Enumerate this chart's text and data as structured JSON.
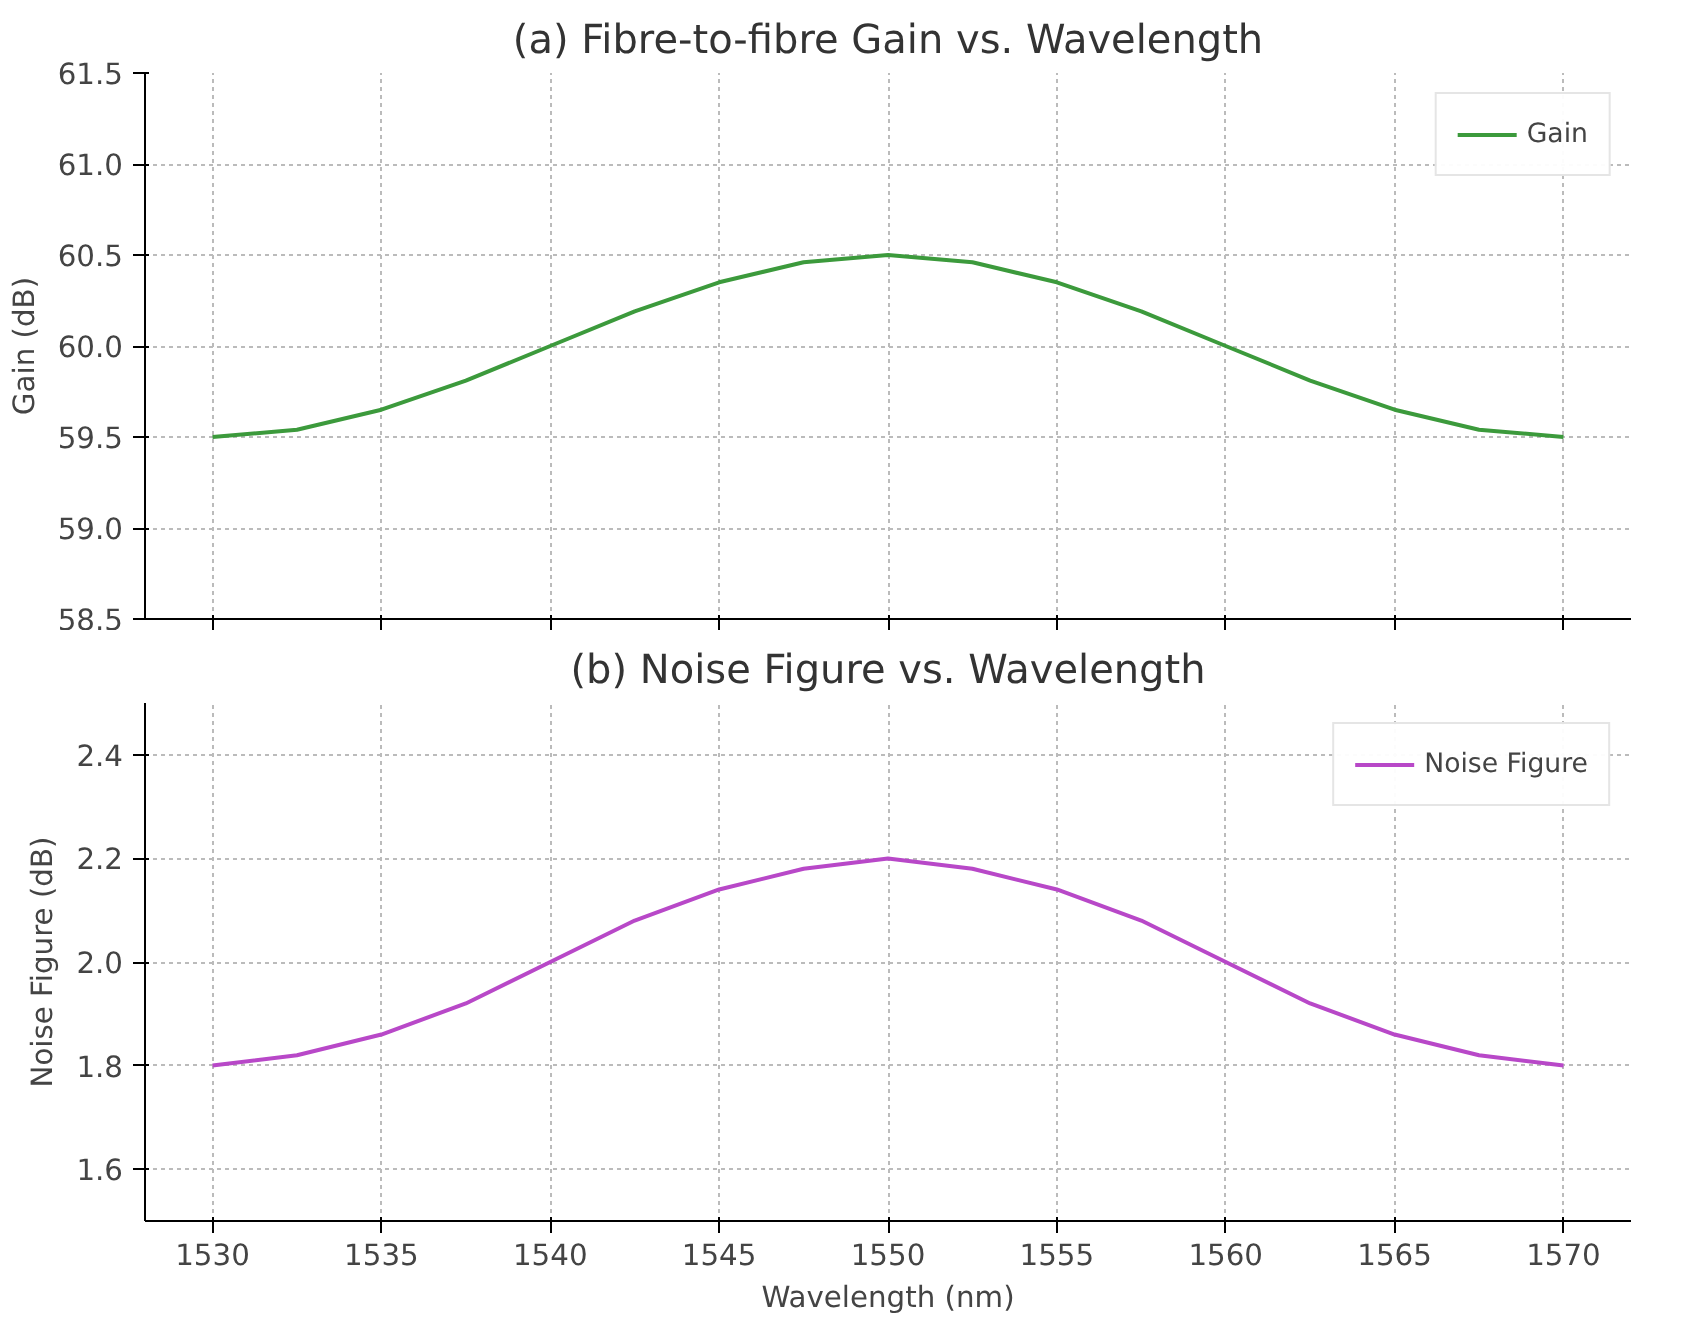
{
  "chart_data": [
    {
      "type": "line",
      "title": "(a) Fibre-to-fibre Gain vs. Wavelength",
      "ylabel": "Gain (dB)",
      "x": [
        1530,
        1532.5,
        1535,
        1537.5,
        1540,
        1542.5,
        1545,
        1547.5,
        1550,
        1552.5,
        1555,
        1557.5,
        1560,
        1562.5,
        1565,
        1567.5,
        1570
      ],
      "series": [
        {
          "name": "Gain",
          "color": "#3c9a3c",
          "values": [
            59.5,
            59.54,
            59.65,
            59.81,
            60.0,
            60.19,
            60.35,
            60.46,
            60.5,
            60.46,
            60.35,
            60.19,
            60.0,
            59.81,
            59.65,
            59.54,
            59.5
          ]
        }
      ],
      "xlim": [
        1528,
        1572
      ],
      "xticks": [
        1530,
        1535,
        1540,
        1545,
        1550,
        1555,
        1560,
        1565,
        1570
      ],
      "ylim": [
        58.5,
        61.5
      ],
      "yticks": [
        58.5,
        {
          "value": 59,
          "label": "59.0"
        },
        59.5,
        {
          "value": 60,
          "label": "60.0"
        },
        60.5,
        {
          "value": 61,
          "label": "61.0"
        },
        61.5
      ],
      "tick_labels": "y",
      "grid": true,
      "legend": "top right"
    },
    {
      "type": "line",
      "title": "(b) Noise Figure vs. Wavelength",
      "xlabel": "Wavelength (nm)",
      "ylabel": "Noise Figure (dB)",
      "x": [
        1530,
        1532.5,
        1535,
        1537.5,
        1540,
        1542.5,
        1545,
        1547.5,
        1550,
        1552.5,
        1555,
        1557.5,
        1560,
        1562.5,
        1565,
        1567.5,
        1570
      ],
      "series": [
        {
          "name": "Noise Figure",
          "color": "#b848c8",
          "values": [
            1.8,
            1.82,
            1.86,
            1.92,
            2.0,
            2.08,
            2.14,
            2.18,
            2.2,
            2.18,
            2.14,
            2.08,
            2.0,
            1.92,
            1.86,
            1.82,
            1.8
          ]
        }
      ],
      "xlim": [
        1528,
        1572
      ],
      "xticks": [
        1530,
        1535,
        1540,
        1545,
        1550,
        1555,
        1560,
        1565,
        1570
      ],
      "ylim": [
        1.5,
        2.5
      ],
      "yticks": [
        1.6,
        1.8,
        {
          "value": 2,
          "label": "2.0"
        },
        2.2,
        2.4
      ],
      "grid": true,
      "legend": "top right"
    }
  ]
}
